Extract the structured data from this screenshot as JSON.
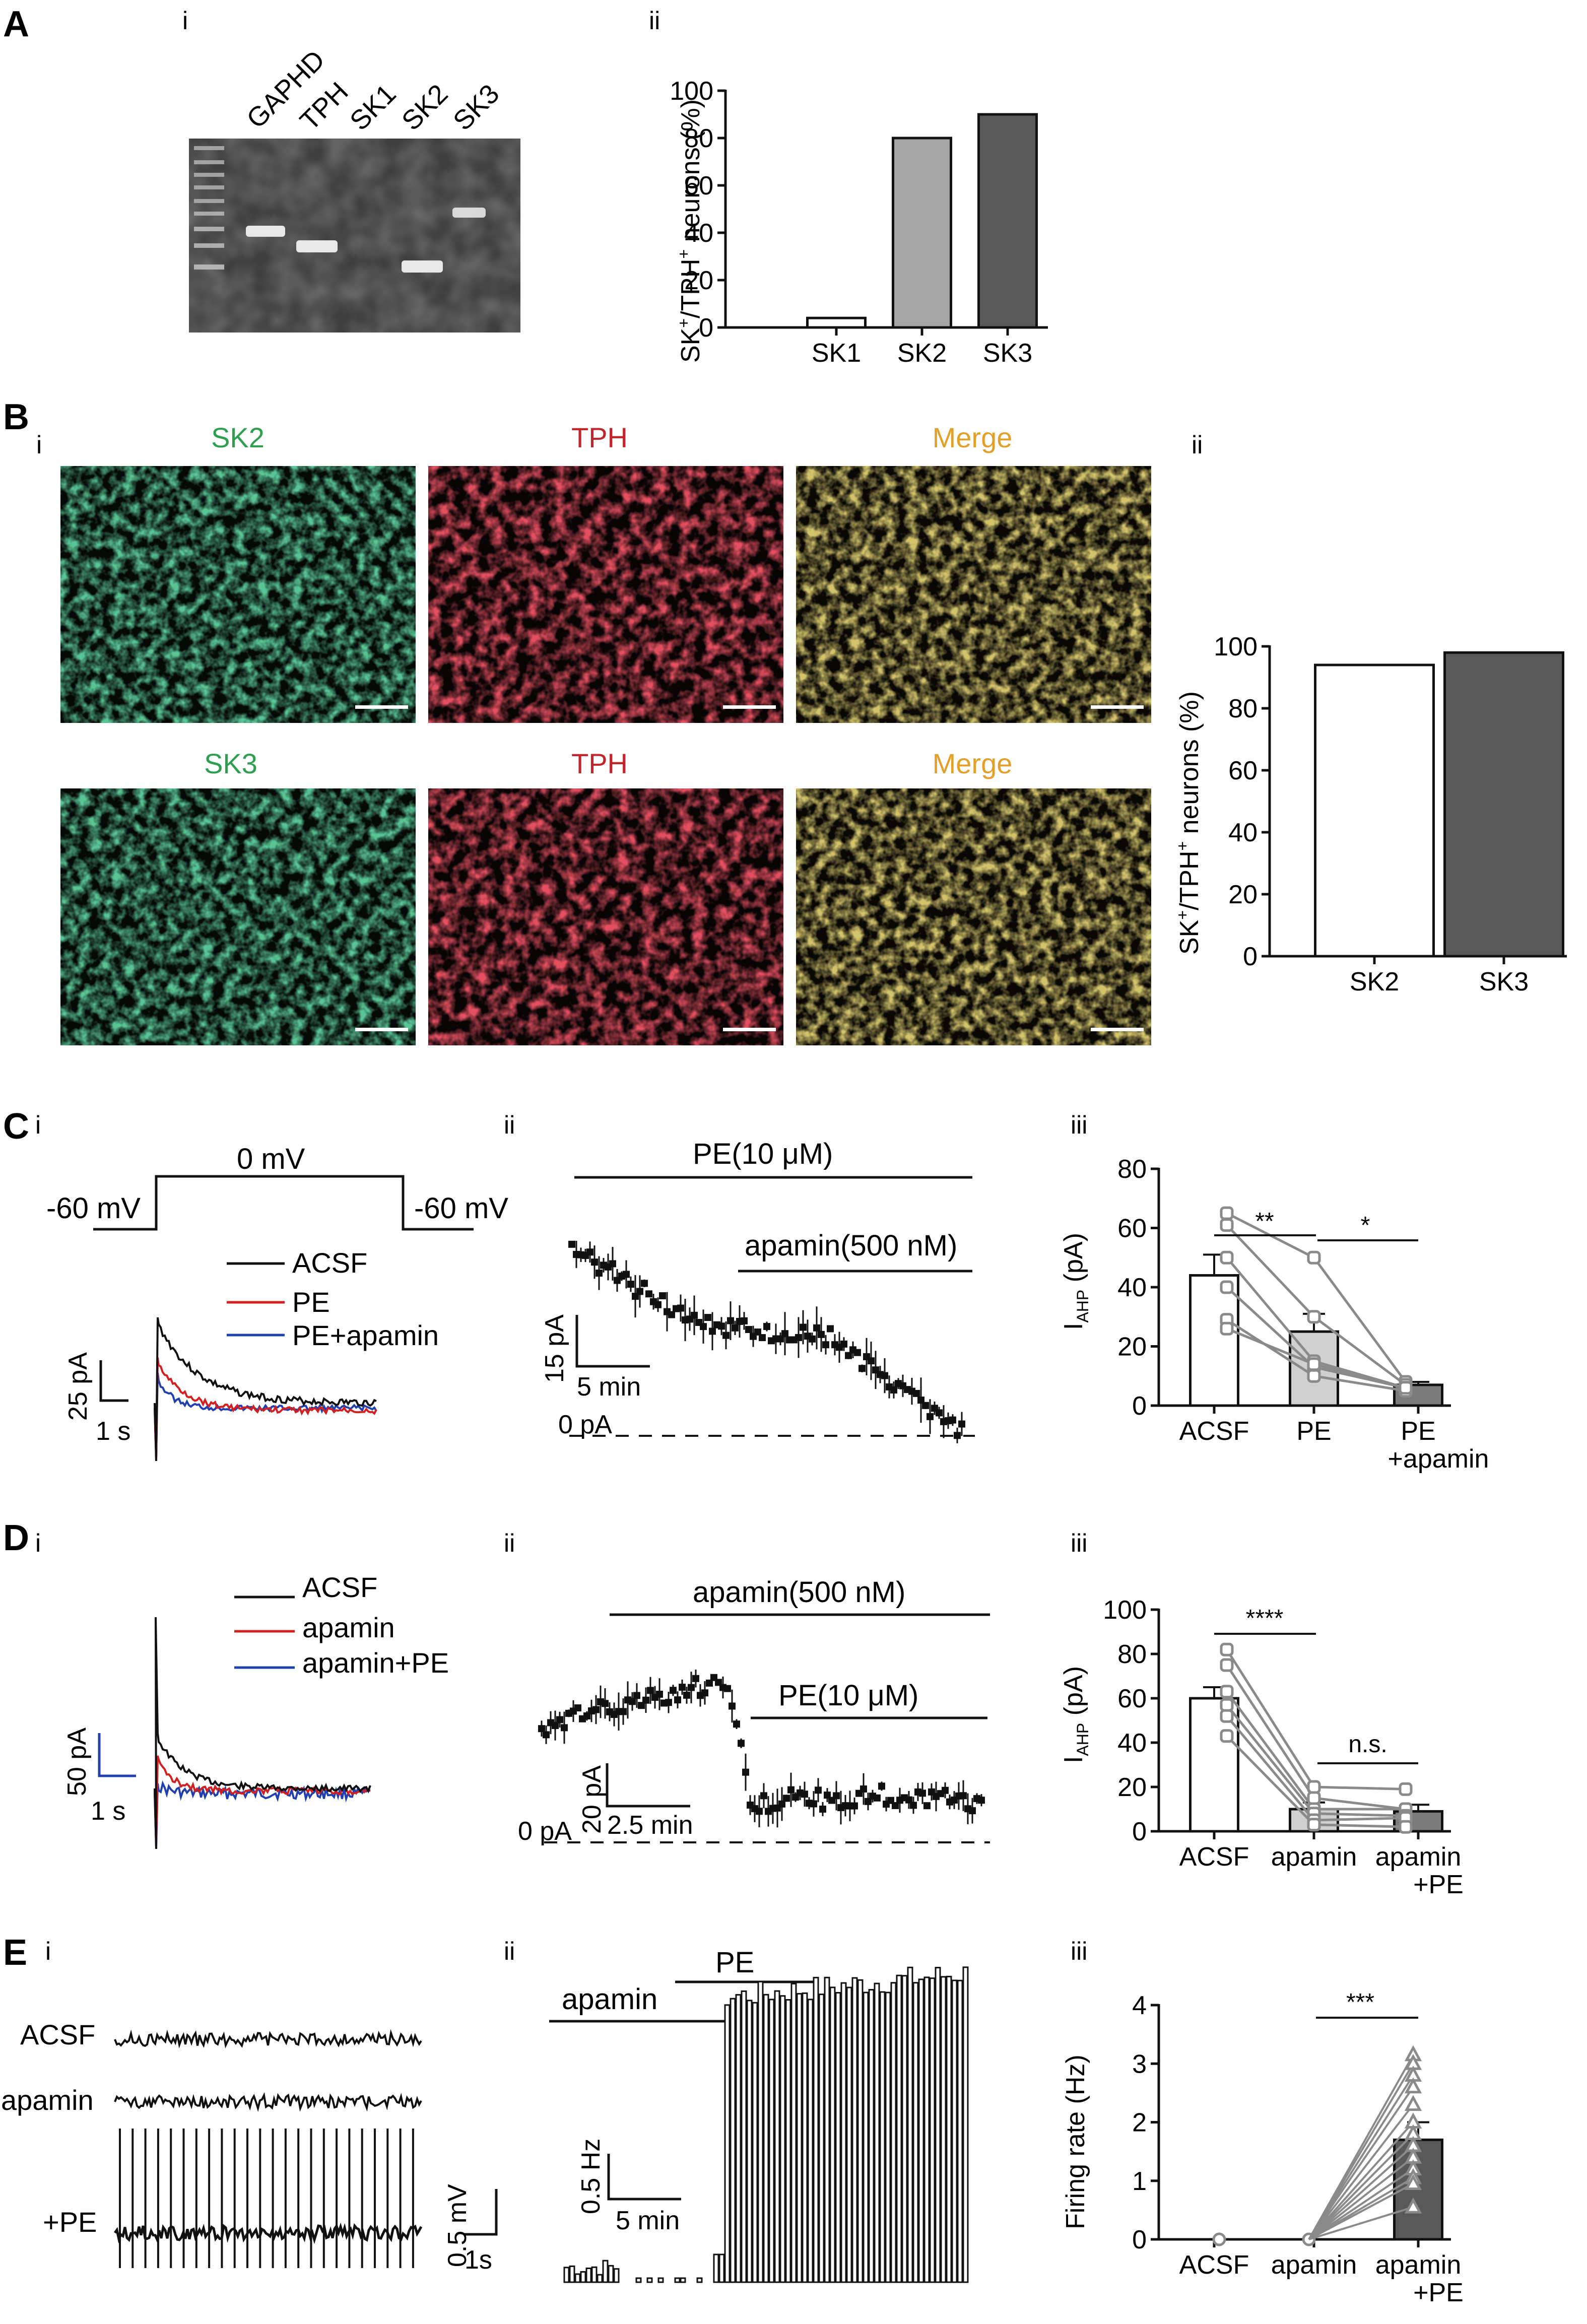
{
  "panels": {
    "A": {
      "letter": "A",
      "i": {
        "sub": "i",
        "gel_lanes": [
          "GAPHD",
          "TPH",
          "SK1",
          "SK2",
          "SK3"
        ]
      },
      "ii": {
        "sub": "ii",
        "ylabel_main": "SK",
        "ylabel_sup1": "+",
        "ylabel_mid": "/TPH",
        "ylabel_sup2": "+",
        "ylabel_end": " neurons (%)"
      }
    },
    "B": {
      "letter": "B",
      "i": {
        "sub": "i",
        "row1": [
          "SK2",
          "TPH",
          "Merge"
        ],
        "row2": [
          "SK3",
          "TPH",
          "Merge"
        ],
        "label_colors": [
          "#2e9e4f",
          "#c0262b",
          "#e2a02a"
        ]
      },
      "ii": {
        "sub": "ii",
        "ylabel_main": "SK",
        "ylabel_sup1": "+",
        "ylabel_mid": "/TPH",
        "ylabel_sup2": "+",
        "ylabel_end": " neurons (%)"
      }
    },
    "C": {
      "letter": "C",
      "i": {
        "sub": "i",
        "protocol": {
          "hold_left": "-60 mV",
          "step": "0 mV",
          "hold_right": "-60 mV"
        },
        "legend": [
          "ACSF",
          "PE",
          "PE+apamin"
        ],
        "scale_y": "25 pA",
        "scale_x": "1 s"
      },
      "ii": {
        "sub": "ii",
        "bar1": "PE(10 μM)",
        "bar2": "apamin(500 nM)",
        "scale_y": "15 pA",
        "scale_x": "5 min",
        "zero": "0 pA"
      },
      "iii": {
        "sub": "iii",
        "ylabel": "I",
        "ylabel_sub": "AHP",
        "ylabel_unit": " (pA)",
        "sig1": "**",
        "sig2": "*"
      }
    },
    "D": {
      "letter": "D",
      "i": {
        "sub": "i",
        "legend": [
          "ACSF",
          "apamin",
          "apamin+PE"
        ],
        "scale_y": "50 pA",
        "scale_x": "1 s"
      },
      "ii": {
        "sub": "ii",
        "bar1": "apamin(500 nM)",
        "bar2": "PE(10 μM)",
        "scale_y": "20 pA",
        "scale_x": "2.5 min",
        "zero": "0 pA"
      },
      "iii": {
        "sub": "iii",
        "ylabel": "I",
        "ylabel_sub": "AHP",
        "ylabel_unit": " (pA)",
        "sig1": "****",
        "sig2": "n.s."
      }
    },
    "E": {
      "letter": "E",
      "i": {
        "sub": "i",
        "rows": [
          "ACSF",
          "apamin",
          "+PE"
        ],
        "scale_y": "0.5 mV",
        "scale_x": "1s"
      },
      "ii": {
        "sub": "ii",
        "bar1": "apamin",
        "bar2": "PE",
        "scale_y": "0.5 Hz",
        "scale_x": "5 min"
      },
      "iii": {
        "sub": "iii",
        "ylabel": "Firing rate (Hz)",
        "sig1": "***"
      }
    }
  },
  "chart_data": [
    {
      "id": "A-ii",
      "type": "bar",
      "categories": [
        "SK1",
        "SK2",
        "SK3"
      ],
      "values": [
        4,
        80,
        90
      ],
      "colors": [
        "#ffffff",
        "#a6a6a6",
        "#595959"
      ],
      "ylim": [
        0,
        100
      ],
      "yticks": [
        0,
        20,
        40,
        60,
        80,
        100
      ]
    },
    {
      "id": "B-ii",
      "type": "bar",
      "categories": [
        "SK2",
        "SK3"
      ],
      "values": [
        94,
        98
      ],
      "colors": [
        "#ffffff",
        "#595959"
      ],
      "ylim": [
        0,
        100
      ],
      "yticks": [
        0,
        20,
        40,
        60,
        80,
        100
      ]
    },
    {
      "id": "C-iii",
      "type": "bar",
      "categories": [
        "ACSF",
        "PE",
        "PE +apamin"
      ],
      "category_lines": [
        [
          "ACSF"
        ],
        [
          "PE"
        ],
        [
          "PE",
          "+apamin"
        ]
      ],
      "values": [
        44,
        25,
        7
      ],
      "errors": [
        7,
        6,
        1
      ],
      "colors": [
        "#ffffff",
        "#d0d0d0",
        "#7a7a7a"
      ],
      "paired": [
        [
          65,
          50,
          8
        ],
        [
          61,
          30,
          7
        ],
        [
          50,
          15,
          6
        ],
        [
          40,
          13,
          6
        ],
        [
          29,
          10,
          5
        ],
        [
          26,
          14,
          6
        ]
      ],
      "ylim": [
        0,
        80
      ],
      "yticks": [
        0,
        20,
        40,
        60,
        80
      ]
    },
    {
      "id": "D-iii",
      "type": "bar",
      "categories": [
        "ACSF",
        "apamin",
        "apamin +PE"
      ],
      "category_lines": [
        [
          "ACSF"
        ],
        [
          "apamin"
        ],
        [
          "apamin",
          "+PE"
        ]
      ],
      "values": [
        60,
        10,
        9
      ],
      "errors": [
        5,
        3,
        3
      ],
      "colors": [
        "#ffffff",
        "#d0d0d0",
        "#7a7a7a"
      ],
      "paired": [
        [
          82,
          20,
          19
        ],
        [
          75,
          15,
          10
        ],
        [
          63,
          10,
          10
        ],
        [
          57,
          8,
          7
        ],
        [
          52,
          5,
          6
        ],
        [
          43,
          3,
          2
        ]
      ],
      "ylim": [
        0,
        100
      ],
      "yticks": [
        0,
        20,
        40,
        60,
        80,
        100
      ]
    },
    {
      "id": "E-iii",
      "type": "bar",
      "categories": [
        "ACSF",
        "apamin",
        "apamin +PE"
      ],
      "category_lines": [
        [
          "ACSF"
        ],
        [
          "apamin"
        ],
        [
          "apamin",
          "+PE"
        ]
      ],
      "values": [
        0,
        0,
        1.7
      ],
      "errors": [
        0,
        0,
        0.3
      ],
      "colors": [
        "#ffffff",
        "#ffffff",
        "#595959"
      ],
      "paired_end": [
        3.15,
        3.0,
        2.8,
        2.6,
        2.3,
        2.0,
        1.8,
        1.6,
        1.4,
        1.2,
        1.05,
        0.95,
        0.55
      ],
      "ylim": [
        0,
        4
      ],
      "yticks": [
        0,
        1,
        2,
        3,
        4
      ]
    }
  ]
}
